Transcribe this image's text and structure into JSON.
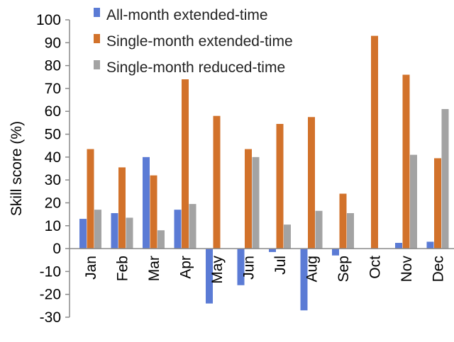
{
  "chart_data": {
    "type": "bar",
    "title": "",
    "xlabel": "",
    "ylabel": "Skill score (%)",
    "ylim": [
      -30,
      100
    ],
    "yticks": [
      -30,
      -20,
      -10,
      0,
      10,
      20,
      30,
      40,
      50,
      60,
      70,
      80,
      90,
      100
    ],
    "grid": false,
    "legend_position": "top-left",
    "categories": [
      "Jan",
      "Feb",
      "Mar",
      "Apr",
      "May",
      "Jun",
      "Jul",
      "Aug",
      "Sep",
      "Oct",
      "Nov",
      "Dec"
    ],
    "series": [
      {
        "name": "All-month extended-time",
        "color": "#5b7bd5",
        "values": [
          13,
          15.5,
          40,
          17,
          -24,
          -16,
          -1.5,
          -27,
          -3,
          0,
          2.5,
          3
        ]
      },
      {
        "name": "Single-month extended-time",
        "color": "#d2722b",
        "values": [
          43.5,
          35.5,
          32,
          74,
          58,
          43.5,
          54.5,
          57.5,
          24,
          93,
          76,
          39.5
        ]
      },
      {
        "name": "Single-month reduced-time",
        "color": "#a3a3a3",
        "values": [
          17,
          13.5,
          8,
          19.5,
          0,
          40,
          10.5,
          16.5,
          15.5,
          0,
          41,
          61
        ]
      }
    ]
  }
}
